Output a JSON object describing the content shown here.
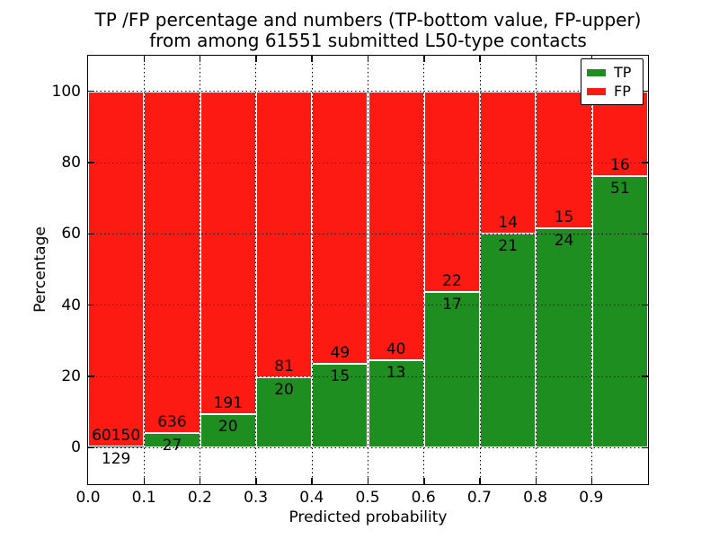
{
  "figure": {
    "title_line1": "TP /FP percentage and numbers (TP-bottom value, FP-upper)",
    "title_line2": "from among 61551 submitted L50-type contacts",
    "xlabel": "Predicted probability",
    "ylabel": "Percentage"
  },
  "legend": {
    "items": [
      {
        "label": "TP",
        "color": "#1f8e20"
      },
      {
        "label": "FP",
        "color": "#fc1a13"
      }
    ]
  },
  "chart_data": {
    "type": "bar",
    "subtype": "stacked-percentage",
    "title": "TP /FP percentage and numbers (TP-bottom value, FP-upper) from among 61551 submitted L50-type contacts",
    "xlabel": "Predicted probability",
    "ylabel": "Percentage",
    "total_contacts": 61551,
    "xlim": [
      0.0,
      1.0
    ],
    "ylim": [
      -10,
      110
    ],
    "grid": "dotted",
    "legend_position": "upper right",
    "x_tick_labels": [
      "0.0",
      "0.1",
      "0.2",
      "0.3",
      "0.4",
      "0.5",
      "0.6",
      "0.7",
      "0.8",
      "0.9"
    ],
    "y_tick_values": [
      0,
      20,
      40,
      60,
      80,
      100
    ],
    "y_tick_labels": [
      "0",
      "20",
      "40",
      "60",
      "80",
      "100"
    ],
    "bin_edges": [
      0.0,
      0.1,
      0.2,
      0.3,
      0.4,
      0.5,
      0.6,
      0.7,
      0.8,
      0.9,
      1.0
    ],
    "series": [
      {
        "name": "TP",
        "color": "#1f8e20",
        "counts": [
          129,
          27,
          20,
          20,
          15,
          13,
          17,
          21,
          24,
          51
        ]
      },
      {
        "name": "FP",
        "color": "#fc1a13",
        "counts": [
          60150,
          636,
          191,
          81,
          49,
          40,
          22,
          14,
          15,
          16
        ]
      }
    ],
    "tp_percent_of_bin": [
      0.21,
      4.07,
      9.48,
      19.8,
      23.44,
      24.53,
      43.59,
      60.0,
      61.54,
      76.12
    ]
  }
}
